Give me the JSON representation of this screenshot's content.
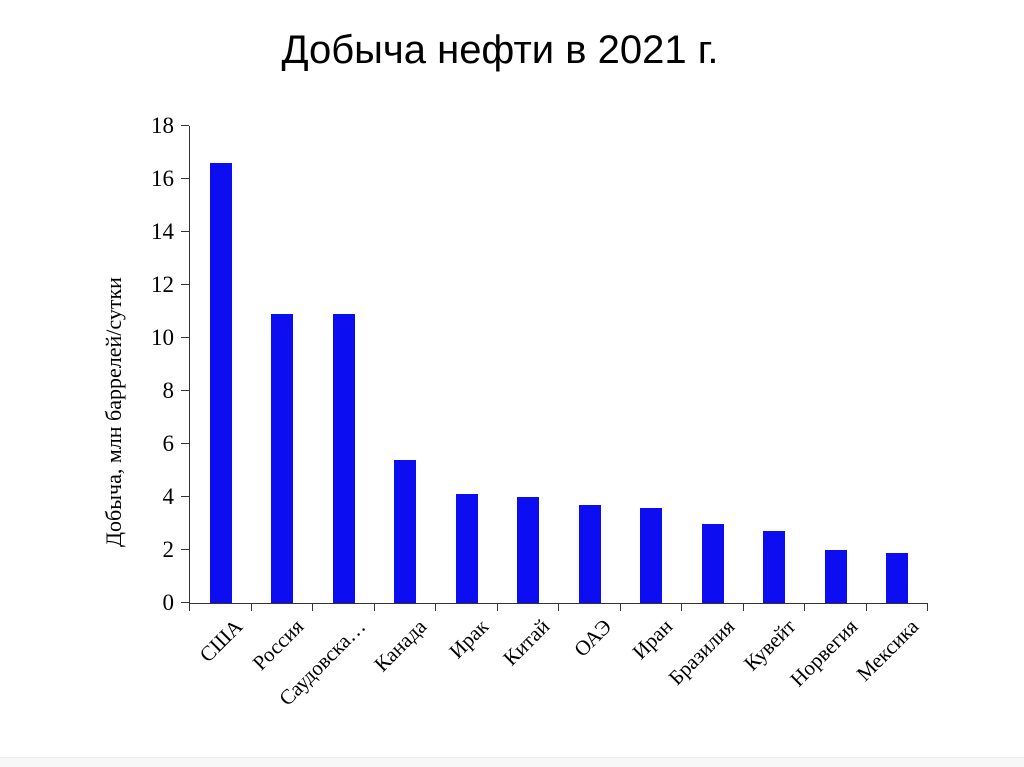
{
  "page": {
    "background": "#ffffff",
    "bottom_edge_color": "#f7f7f8"
  },
  "chart_data": {
    "type": "bar",
    "title": "Добыча нефти в 2021 г.",
    "categories": [
      "США",
      "Россия",
      "Саудовска…",
      "Канада",
      "Ирак",
      "Китай",
      "ОАЭ",
      "Иран",
      "Бразилия",
      "Кувейт",
      "Норвегия",
      "Мексика"
    ],
    "values": [
      16.6,
      10.9,
      10.9,
      5.4,
      4.1,
      4.0,
      3.7,
      3.6,
      3.0,
      2.7,
      2.0,
      1.9
    ],
    "xlabel": "",
    "ylabel": "Добыча, млн баррелей/сутки",
    "ylim": [
      0,
      18
    ],
    "ytick_step": 2,
    "grid": false,
    "legend": false,
    "bar_color": "#0d0df2",
    "axis_color": "#333333",
    "text_color": "#000000"
  }
}
